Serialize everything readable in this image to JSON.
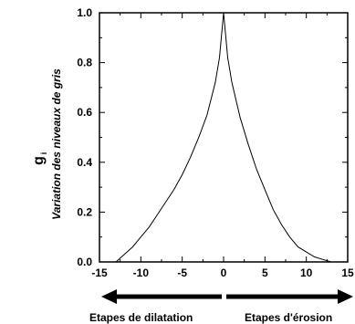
{
  "chart_data": {
    "type": "line",
    "title": "",
    "ylabel": {
      "symbol": "g",
      "subscript": "i",
      "text": "Variation des niveaux de gris"
    },
    "xlabel": "",
    "xlim": [
      -15,
      15
    ],
    "ylim": [
      0,
      1.0
    ],
    "x_ticks": [
      "-15",
      "-10",
      "-5",
      "0",
      "5",
      "10",
      "15"
    ],
    "y_ticks": [
      "0.0",
      "0.2",
      "0.4",
      "0.6",
      "0.8",
      "1.0"
    ],
    "grid": false,
    "series": [
      {
        "x": [
          -13,
          -12,
          -11,
          -10,
          -9,
          -8,
          -7,
          -6,
          -5,
          -4,
          -3,
          -2,
          -1,
          -0.5,
          0,
          0.5,
          1,
          2,
          3,
          4,
          5,
          6,
          7,
          8,
          9,
          10,
          11,
          12,
          13
        ],
        "y": [
          0.0,
          0.03,
          0.06,
          0.1,
          0.14,
          0.19,
          0.24,
          0.29,
          0.35,
          0.42,
          0.5,
          0.59,
          0.72,
          0.82,
          1.0,
          0.82,
          0.72,
          0.58,
          0.47,
          0.37,
          0.29,
          0.21,
          0.15,
          0.1,
          0.06,
          0.04,
          0.02,
          0.01,
          0.0
        ]
      }
    ],
    "annotations": {
      "left_arrow_label": "Etapes de dilatation",
      "right_arrow_label": "Etapes d'érosion"
    }
  }
}
